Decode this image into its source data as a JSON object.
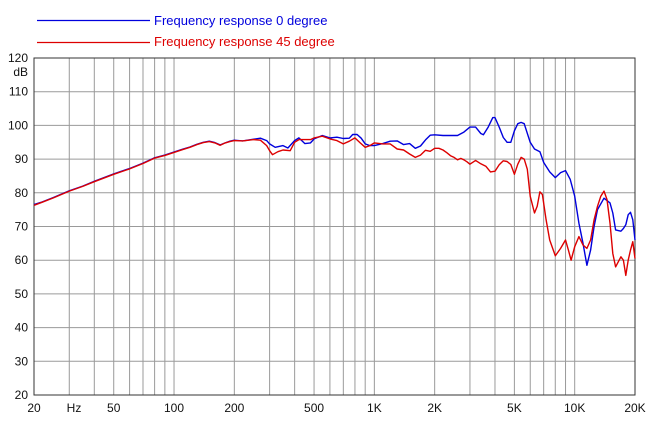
{
  "chart_data": {
    "type": "line",
    "title": "",
    "xlabel": "",
    "ylabel": "dB",
    "x_scale": "log",
    "xlim": [
      20,
      20000
    ],
    "ylim": [
      20,
      120
    ],
    "grid": true,
    "legend_position": "top-left",
    "y_ticks": [
      20,
      30,
      40,
      50,
      60,
      70,
      80,
      90,
      100,
      110,
      120
    ],
    "y_tick_labels": [
      "20",
      "30",
      "40",
      "50",
      "60",
      "70",
      "80",
      "90",
      "100",
      "110",
      "120"
    ],
    "x_ticks": [
      20,
      50,
      100,
      200,
      500,
      1000,
      2000,
      5000,
      10000,
      20000
    ],
    "x_tick_labels": [
      "20",
      "50",
      "100",
      "200",
      "500",
      "1K",
      "2K",
      "5K",
      "10K",
      "20K"
    ],
    "x_unit_label": "Hz",
    "series": [
      {
        "name": "Frequency response 0 degree",
        "color": "#0000dd",
        "points": [
          [
            20,
            76.5
          ],
          [
            22,
            77.3
          ],
          [
            25,
            78.6
          ],
          [
            30,
            80.6
          ],
          [
            35,
            82
          ],
          [
            40,
            83.4
          ],
          [
            50,
            85.6
          ],
          [
            60,
            87.2
          ],
          [
            70,
            88.8
          ],
          [
            80,
            90.4
          ],
          [
            90,
            91.2
          ],
          [
            100,
            92.1
          ],
          [
            110,
            92.9
          ],
          [
            120,
            93.6
          ],
          [
            130,
            94.4
          ],
          [
            140,
            95
          ],
          [
            150,
            95.3
          ],
          [
            160,
            94.9
          ],
          [
            170,
            94.2
          ],
          [
            180,
            94.8
          ],
          [
            190,
            95.3
          ],
          [
            200,
            95.6
          ],
          [
            220,
            95.4
          ],
          [
            250,
            95.9
          ],
          [
            270,
            96.2
          ],
          [
            290,
            95.5
          ],
          [
            300,
            94.5
          ],
          [
            320,
            93.5
          ],
          [
            350,
            94
          ],
          [
            370,
            93.3
          ],
          [
            400,
            95.5
          ],
          [
            420,
            96.3
          ],
          [
            450,
            94.6
          ],
          [
            480,
            94.8
          ],
          [
            500,
            96
          ],
          [
            550,
            97
          ],
          [
            600,
            96.3
          ],
          [
            650,
            96.5
          ],
          [
            700,
            96.1
          ],
          [
            750,
            96.2
          ],
          [
            780,
            97.3
          ],
          [
            820,
            97.3
          ],
          [
            860,
            96.2
          ],
          [
            900,
            94.5
          ],
          [
            950,
            94
          ],
          [
            1000,
            94
          ],
          [
            1100,
            94.6
          ],
          [
            1200,
            95.3
          ],
          [
            1300,
            95.4
          ],
          [
            1400,
            94.3
          ],
          [
            1500,
            94.6
          ],
          [
            1600,
            93.2
          ],
          [
            1700,
            93.9
          ],
          [
            1800,
            95.7
          ],
          [
            1900,
            97.1
          ],
          [
            2000,
            97.2
          ],
          [
            2200,
            97
          ],
          [
            2400,
            97
          ],
          [
            2600,
            97
          ],
          [
            2800,
            98
          ],
          [
            3000,
            99.5
          ],
          [
            3200,
            99.5
          ],
          [
            3400,
            97.6
          ],
          [
            3500,
            97.2
          ],
          [
            3700,
            99.5
          ],
          [
            3900,
            102.3
          ],
          [
            4000,
            102.3
          ],
          [
            4200,
            99.5
          ],
          [
            4400,
            96.4
          ],
          [
            4600,
            95
          ],
          [
            4800,
            95
          ],
          [
            5000,
            98.4
          ],
          [
            5200,
            100.5
          ],
          [
            5400,
            100.9
          ],
          [
            5600,
            100.5
          ],
          [
            6000,
            95
          ],
          [
            6300,
            93
          ],
          [
            6700,
            92.2
          ],
          [
            7000,
            89
          ],
          [
            7500,
            86.2
          ],
          [
            8000,
            84.5
          ],
          [
            8500,
            86
          ],
          [
            9000,
            86.6
          ],
          [
            9500,
            84
          ],
          [
            10000,
            79
          ],
          [
            10500,
            71
          ],
          [
            11000,
            65
          ],
          [
            11500,
            58.5
          ],
          [
            12000,
            63
          ],
          [
            12500,
            70
          ],
          [
            13000,
            75
          ],
          [
            14000,
            78.4
          ],
          [
            15000,
            77
          ],
          [
            15500,
            74
          ],
          [
            16000,
            69
          ],
          [
            17000,
            68.6
          ],
          [
            17500,
            69.4
          ],
          [
            18000,
            70.5
          ],
          [
            18500,
            73.5
          ],
          [
            19000,
            74.2
          ],
          [
            19500,
            72
          ],
          [
            20000,
            66
          ]
        ]
      },
      {
        "name": "Frequency response 45 degree",
        "color": "#dd0000",
        "points": [
          [
            20,
            76.3
          ],
          [
            22,
            77.2
          ],
          [
            25,
            78.5
          ],
          [
            30,
            80.5
          ],
          [
            35,
            81.9
          ],
          [
            40,
            83.3
          ],
          [
            50,
            85.5
          ],
          [
            60,
            87.1
          ],
          [
            70,
            88.7
          ],
          [
            80,
            90.3
          ],
          [
            90,
            91.1
          ],
          [
            100,
            92
          ],
          [
            110,
            92.8
          ],
          [
            120,
            93.5
          ],
          [
            130,
            94.3
          ],
          [
            140,
            94.9
          ],
          [
            150,
            95.2
          ],
          [
            160,
            94.8
          ],
          [
            170,
            94.1
          ],
          [
            180,
            94.8
          ],
          [
            190,
            95.2
          ],
          [
            200,
            95.5
          ],
          [
            220,
            95.4
          ],
          [
            250,
            95.8
          ],
          [
            270,
            95.6
          ],
          [
            290,
            94
          ],
          [
            300,
            92.5
          ],
          [
            310,
            91.3
          ],
          [
            330,
            92.2
          ],
          [
            350,
            92.7
          ],
          [
            380,
            92.5
          ],
          [
            400,
            95
          ],
          [
            420,
            95.8
          ],
          [
            450,
            95.8
          ],
          [
            480,
            95.8
          ],
          [
            500,
            96.3
          ],
          [
            550,
            96.8
          ],
          [
            600,
            96
          ],
          [
            650,
            95.5
          ],
          [
            700,
            94.5
          ],
          [
            750,
            95.3
          ],
          [
            800,
            96.3
          ],
          [
            850,
            94.8
          ],
          [
            900,
            93.5
          ],
          [
            950,
            94
          ],
          [
            1000,
            94.8
          ],
          [
            1100,
            94.5
          ],
          [
            1200,
            94.5
          ],
          [
            1300,
            93
          ],
          [
            1400,
            92.7
          ],
          [
            1500,
            91.5
          ],
          [
            1600,
            90.5
          ],
          [
            1700,
            91.2
          ],
          [
            1800,
            92.6
          ],
          [
            1900,
            92.3
          ],
          [
            2000,
            93.2
          ],
          [
            2100,
            93.2
          ],
          [
            2200,
            92.7
          ],
          [
            2300,
            91.9
          ],
          [
            2400,
            91
          ],
          [
            2500,
            90.5
          ],
          [
            2600,
            89.8
          ],
          [
            2700,
            90.2
          ],
          [
            2800,
            89.8
          ],
          [
            2900,
            89.2
          ],
          [
            3000,
            88.5
          ],
          [
            3200,
            89.6
          ],
          [
            3400,
            88.6
          ],
          [
            3600,
            87.9
          ],
          [
            3800,
            86.2
          ],
          [
            4000,
            86.4
          ],
          [
            4200,
            88.3
          ],
          [
            4400,
            89.5
          ],
          [
            4600,
            89.3
          ],
          [
            4800,
            88.4
          ],
          [
            5000,
            85.5
          ],
          [
            5200,
            88.5
          ],
          [
            5400,
            90.5
          ],
          [
            5600,
            90
          ],
          [
            5800,
            87
          ],
          [
            6000,
            79
          ],
          [
            6300,
            74
          ],
          [
            6500,
            76
          ],
          [
            6700,
            80.3
          ],
          [
            6900,
            79.5
          ],
          [
            7200,
            72
          ],
          [
            7500,
            66
          ],
          [
            8000,
            61.3
          ],
          [
            8500,
            63.5
          ],
          [
            9000,
            66
          ],
          [
            9300,
            63
          ],
          [
            9600,
            60
          ],
          [
            10000,
            64
          ],
          [
            10500,
            67
          ],
          [
            11000,
            64.5
          ],
          [
            11500,
            63.5
          ],
          [
            12000,
            66
          ],
          [
            12500,
            72
          ],
          [
            13000,
            76
          ],
          [
            13500,
            79
          ],
          [
            14000,
            80.5
          ],
          [
            14500,
            78
          ],
          [
            15000,
            71
          ],
          [
            15500,
            62
          ],
          [
            16000,
            58
          ],
          [
            17000,
            61
          ],
          [
            17500,
            60
          ],
          [
            18000,
            55.5
          ],
          [
            18500,
            60
          ],
          [
            19000,
            63
          ],
          [
            19500,
            65.5
          ],
          [
            20000,
            60.5
          ]
        ]
      }
    ]
  }
}
